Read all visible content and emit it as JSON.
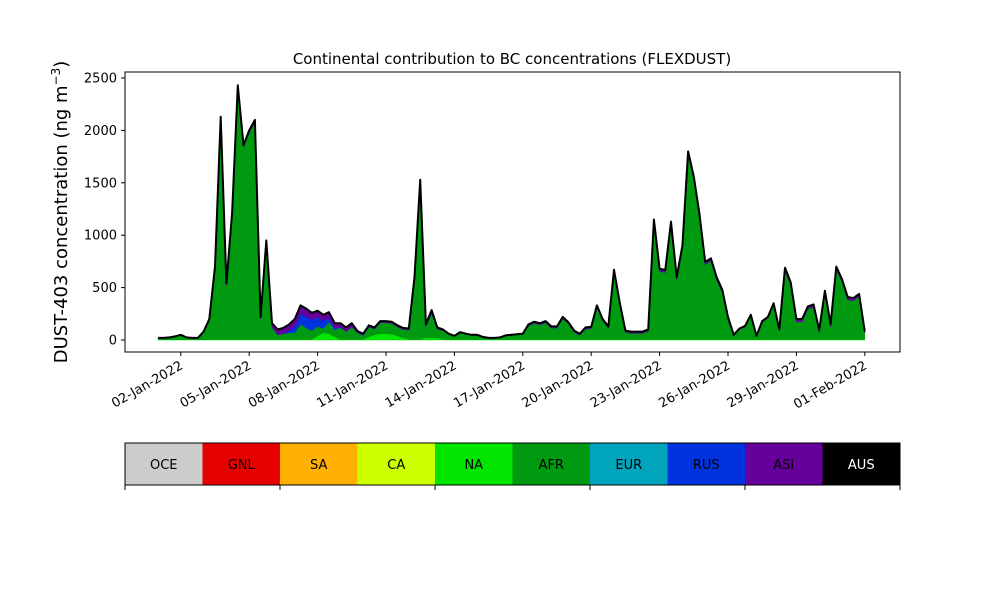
{
  "chart_data": {
    "type": "area",
    "stacked": true,
    "title": "Continental contribution to BC concentrations (FLEXDUST)",
    "ylabel": "DUST-403 concentration (ng m",
    "ylabel_unit_superscript": "−3",
    "ylabel_close": ")",
    "xlabel": "",
    "ylim": [
      -120,
      2560
    ],
    "xlim": [
      "2021-12-30 11:00",
      "2022-02-02 13:00"
    ],
    "yticks": [
      0,
      500,
      1000,
      1500,
      2000,
      2500
    ],
    "xticks": [
      "02-Jan-2022",
      "05-Jan-2022",
      "08-Jan-2022",
      "11-Jan-2022",
      "14-Jan-2022",
      "17-Jan-2022",
      "20-Jan-2022",
      "23-Jan-2022",
      "26-Jan-2022",
      "29-Jan-2022",
      "01-Feb-2022"
    ],
    "xtick_dates": [
      "2022-01-02",
      "2022-01-05",
      "2022-01-08",
      "2022-01-11",
      "2022-01-14",
      "2022-01-17",
      "2022-01-20",
      "2022-01-23",
      "2022-01-26",
      "2022-01-29",
      "2022-02-01"
    ],
    "grid": false,
    "time": {
      "start": "2022-01-01 00:00",
      "interval_hours": 6
    },
    "legend": {
      "placement": "bottom colorbar",
      "entries": [
        {
          "label": "OCE",
          "color": "#cccccc"
        },
        {
          "label": "GNL",
          "color": "#e60000"
        },
        {
          "label": "SA",
          "color": "#ffb000"
        },
        {
          "label": "CA",
          "color": "#ccff00"
        },
        {
          "label": "NA",
          "color": "#00e600"
        },
        {
          "label": "AFR",
          "color": "#009a10"
        },
        {
          "label": "EUR",
          "color": "#00a5bd"
        },
        {
          "label": "RUS",
          "color": "#0033dd"
        },
        {
          "label": "ASI",
          "color": "#66009a"
        },
        {
          "label": "AUS",
          "color": "#000000"
        }
      ]
    },
    "series": [
      {
        "name": "NA",
        "color": "#00e600",
        "values": [
          3,
          3,
          3,
          3,
          3,
          3,
          3,
          3,
          3,
          5,
          5,
          5,
          5,
          5,
          5,
          5,
          5,
          5,
          5,
          5,
          5,
          5,
          5,
          5,
          5,
          5,
          5,
          5,
          40,
          70,
          60,
          30,
          5,
          5,
          5,
          5,
          5,
          30,
          50,
          60,
          60,
          55,
          40,
          20,
          5,
          5,
          5,
          20,
          20,
          20,
          5,
          5,
          5,
          5,
          5,
          5,
          5,
          5,
          5,
          5,
          5,
          5,
          5,
          5,
          5,
          5,
          5,
          5,
          5,
          5,
          5,
          5,
          5,
          5,
          5,
          5,
          5,
          5,
          5,
          5,
          5,
          5,
          5,
          5,
          5,
          5,
          5,
          5,
          5,
          5,
          5,
          5,
          5,
          5,
          5,
          5,
          5,
          5,
          5,
          5,
          5,
          5,
          5,
          5,
          5,
          5,
          5,
          5,
          5,
          5,
          5,
          5,
          5,
          5,
          5,
          5,
          5,
          5,
          5,
          5,
          5,
          5,
          5,
          5,
          5
        ]
      },
      {
        "name": "AFR",
        "color": "#009a10",
        "values": [
          14,
          14,
          19,
          29,
          44,
          19,
          14,
          14,
          74,
          175,
          675,
          2105,
          515,
          1185,
          2405,
          1835,
          1975,
          2075,
          195,
          925,
          115,
          45,
          55,
          65,
          65,
          145,
          110,
          85,
          90,
          40,
          110,
          65,
          115,
          75,
          120,
          65,
          40,
          95,
          55,
          105,
          105,
          105,
          85,
          80,
          90,
          575,
          1495,
          110,
          235,
          85,
          85,
          50,
          30,
          65,
          50,
          40,
          40,
          20,
          10,
          10,
          15,
          35,
          40,
          45,
          50,
          130,
          155,
          140,
          160,
          110,
          110,
          200,
          150,
          70,
          40,
          100,
          105,
          310,
          180,
          110,
          650,
          340,
          70,
          60,
          60,
          60,
          80,
          1120,
          650,
          640,
          1100,
          570,
          870,
          1770,
          1530,
          1170,
          715,
          750,
          570,
          450,
          190,
          35,
          95,
          120,
          225,
          25,
          165,
          205,
          335,
          85,
          660,
          520,
          170,
          170,
          290,
          310,
          65,
          440,
          120,
          670,
          550,
          380,
          370,
          410,
          65
        ]
      },
      {
        "name": "RUS",
        "color": "#0033dd",
        "values": [
          0,
          0,
          0,
          0,
          0,
          0,
          0,
          0,
          0,
          0,
          0,
          0,
          0,
          0,
          0,
          0,
          0,
          0,
          0,
          0,
          0,
          0,
          0,
          20,
          60,
          100,
          110,
          100,
          90,
          70,
          40,
          20,
          0,
          0,
          0,
          0,
          0,
          0,
          0,
          0,
          0,
          0,
          0,
          0,
          0,
          0,
          0,
          0,
          0,
          0,
          0,
          0,
          0,
          0,
          0,
          0,
          0,
          0,
          0,
          0,
          0,
          0,
          0,
          0,
          0,
          0,
          0,
          0,
          0,
          0,
          0,
          0,
          0,
          0,
          0,
          0,
          0,
          0,
          0,
          0,
          0,
          0,
          0,
          0,
          0,
          0,
          0,
          0,
          0,
          0,
          0,
          0,
          0,
          0,
          0,
          0,
          0,
          0,
          0,
          0,
          0,
          0,
          0,
          0,
          0,
          0,
          0,
          0,
          0,
          0,
          0,
          0,
          0,
          0,
          0,
          0,
          0,
          0,
          0,
          0,
          0,
          0,
          0,
          0,
          0
        ]
      },
      {
        "name": "ASI",
        "color": "#66009a",
        "values": [
          3,
          3,
          3,
          3,
          3,
          3,
          3,
          3,
          3,
          20,
          20,
          20,
          20,
          20,
          20,
          20,
          20,
          20,
          20,
          20,
          40,
          50,
          55,
          60,
          70,
          80,
          75,
          70,
          60,
          60,
          55,
          45,
          40,
          40,
          35,
          15,
          15,
          15,
          15,
          15,
          15,
          15,
          15,
          15,
          15,
          20,
          30,
          20,
          30,
          15,
          10,
          5,
          5,
          5,
          5,
          5,
          5,
          5,
          5,
          5,
          5,
          5,
          5,
          5,
          5,
          15,
          15,
          15,
          15,
          15,
          15,
          15,
          15,
          15,
          15,
          15,
          15,
          15,
          15,
          15,
          15,
          15,
          15,
          15,
          15,
          15,
          15,
          25,
          25,
          25,
          25,
          25,
          25,
          25,
          25,
          25,
          25,
          25,
          25,
          25,
          25,
          10,
          10,
          10,
          10,
          10,
          10,
          10,
          10,
          10,
          25,
          25,
          25,
          25,
          25,
          25,
          25,
          25,
          25,
          25,
          25,
          25,
          25,
          25,
          10
        ]
      }
    ]
  }
}
